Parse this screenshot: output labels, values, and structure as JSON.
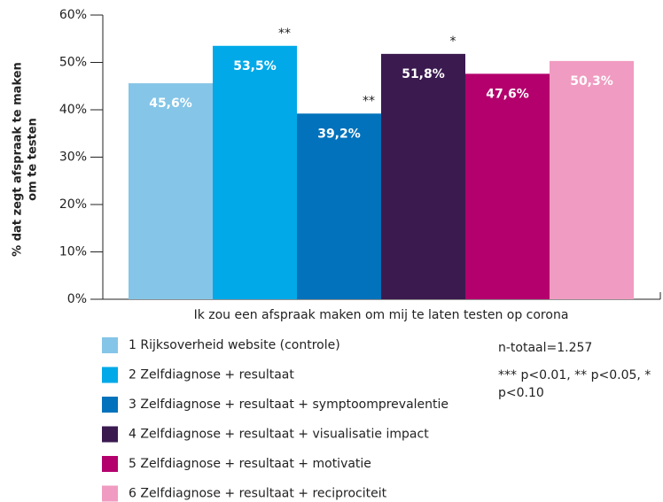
{
  "chart_data": {
    "type": "bar",
    "ylabel": [
      "% dat zegt afspraak te maken",
      "om te testen"
    ],
    "categories": [
      "Ik zou een afspraak maken om mij te laten testen op corona"
    ],
    "series": [
      {
        "name": "1 Rijksoverheid website (controle)",
        "color": "#85c5e7",
        "values": [
          45.6
        ],
        "value_labels": [
          "45,6%"
        ]
      },
      {
        "name": "2 Zelfdiagnose + resultaat",
        "color": "#01a9e8",
        "values": [
          53.5
        ],
        "value_labels": [
          "53,5%"
        ],
        "significance": "**"
      },
      {
        "name": "3 Zelfdiagnose + resultaat + symptoomprevalentie",
        "color": "#0172bb",
        "values": [
          39.2
        ],
        "value_labels": [
          "39,2%"
        ],
        "significance": "**"
      },
      {
        "name": "4 Zelfdiagnose + resultaat + visualisatie impact",
        "color": "#3b1a50",
        "values": [
          51.8
        ],
        "value_labels": [
          "51,8%"
        ],
        "significance": "*"
      },
      {
        "name": "5 Zelfdiagnose + resultaat + motivatie",
        "color": "#b3006d",
        "values": [
          47.6
        ],
        "value_labels": [
          "47,6%"
        ]
      },
      {
        "name": "6 Zelfdiagnose + resultaat + reciprociteit",
        "color": "#f09bc1",
        "values": [
          50.3
        ],
        "value_labels": [
          "50,3%"
        ]
      }
    ],
    "ylim": [
      0,
      60
    ],
    "yticks": [
      {
        "value": 0,
        "label": "0%"
      },
      {
        "value": 10,
        "label": "10%"
      },
      {
        "value": 20,
        "label": "20%"
      },
      {
        "value": 30,
        "label": "30%"
      },
      {
        "value": 40,
        "label": "40%"
      },
      {
        "value": 50,
        "label": "50%"
      },
      {
        "value": 60,
        "label": "60%"
      }
    ],
    "notes": [
      "n-totaal=1.257",
      "*** p<0.01, ** p<0.05, * p<0.10"
    ]
  }
}
